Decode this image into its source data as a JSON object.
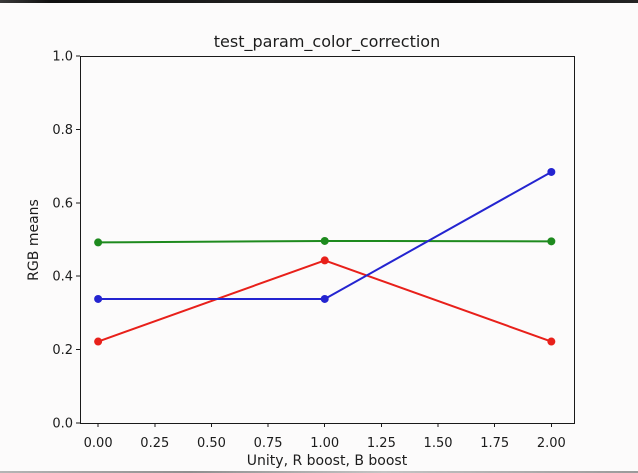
{
  "figure": {
    "background": "#fcfbfb",
    "axis_color": "#1a1a1a",
    "text_color": "#1c1c1c",
    "top_edge_artifact_color": "#1a1a1a",
    "bottom_edge_artifact_color": "#a9a9a9"
  },
  "chart_data": {
    "type": "line",
    "title": "test_param_color_correction",
    "xlabel": "Unity, R boost, B boost",
    "ylabel": "RGB means",
    "x": [
      0,
      1,
      2
    ],
    "series": [
      {
        "name": "red",
        "color": "#e8201a",
        "values": [
          0.222,
          0.443,
          0.222
        ]
      },
      {
        "name": "green",
        "color": "#1e8a1e",
        "values": [
          0.492,
          0.496,
          0.495
        ]
      },
      {
        "name": "blue",
        "color": "#2424d0",
        "values": [
          0.338,
          0.338,
          0.684
        ]
      }
    ],
    "xlim": [
      -0.08,
      2.1
    ],
    "ylim": [
      0,
      1
    ],
    "xticks": {
      "values": [
        0,
        0.25,
        0.5,
        0.75,
        1.0,
        1.25,
        1.5,
        1.75,
        2.0
      ],
      "labels": [
        "0.00",
        "0.25",
        "0.50",
        "0.75",
        "1.00",
        "1.25",
        "1.50",
        "1.75",
        "2.00"
      ]
    },
    "yticks": {
      "values": [
        0,
        0.2,
        0.4,
        0.6,
        0.8,
        1.0
      ],
      "labels": [
        "0.0",
        "0.2",
        "0.4",
        "0.6",
        "0.8",
        "1.0"
      ]
    },
    "grid": false,
    "legend": null,
    "marker": "circle"
  }
}
